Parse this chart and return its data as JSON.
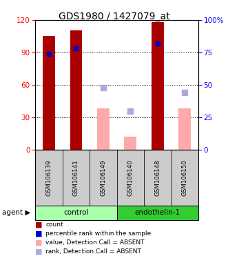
{
  "title": "GDS1980 / 1427079_at",
  "samples": [
    "GSM106139",
    "GSM106141",
    "GSM106149",
    "GSM106140",
    "GSM106148",
    "GSM106150"
  ],
  "bar_count_values": [
    105,
    110,
    null,
    null,
    118,
    null
  ],
  "bar_absent_value_values": [
    null,
    null,
    38,
    12,
    null,
    38
  ],
  "bar_absent_rank_markers": [
    null,
    null,
    48,
    30,
    null,
    44
  ],
  "percentile_rank_values": [
    74,
    78,
    null,
    null,
    82,
    null
  ],
  "left_ylim": [
    0,
    120
  ],
  "right_ylim": [
    0,
    100
  ],
  "left_yticks": [
    0,
    30,
    60,
    90,
    120
  ],
  "right_yticks": [
    0,
    25,
    50,
    75,
    100
  ],
  "right_yticklabels": [
    "0",
    "25",
    "50",
    "75",
    "100%"
  ],
  "count_bar_color": "#aa0000",
  "absent_value_bar_color": "#ffaaaa",
  "absent_rank_marker_color": "#aaaadd",
  "percentile_marker_color": "#0000cc",
  "sample_bg_color": "#cccccc",
  "control_color": "#aaffaa",
  "endothelin_color": "#33cc33",
  "legend_items": [
    {
      "label": "count",
      "color": "#aa0000"
    },
    {
      "label": "percentile rank within the sample",
      "color": "#0000cc"
    },
    {
      "label": "value, Detection Call = ABSENT",
      "color": "#ffaaaa"
    },
    {
      "label": "rank, Detection Call = ABSENT",
      "color": "#aaaadd"
    }
  ]
}
